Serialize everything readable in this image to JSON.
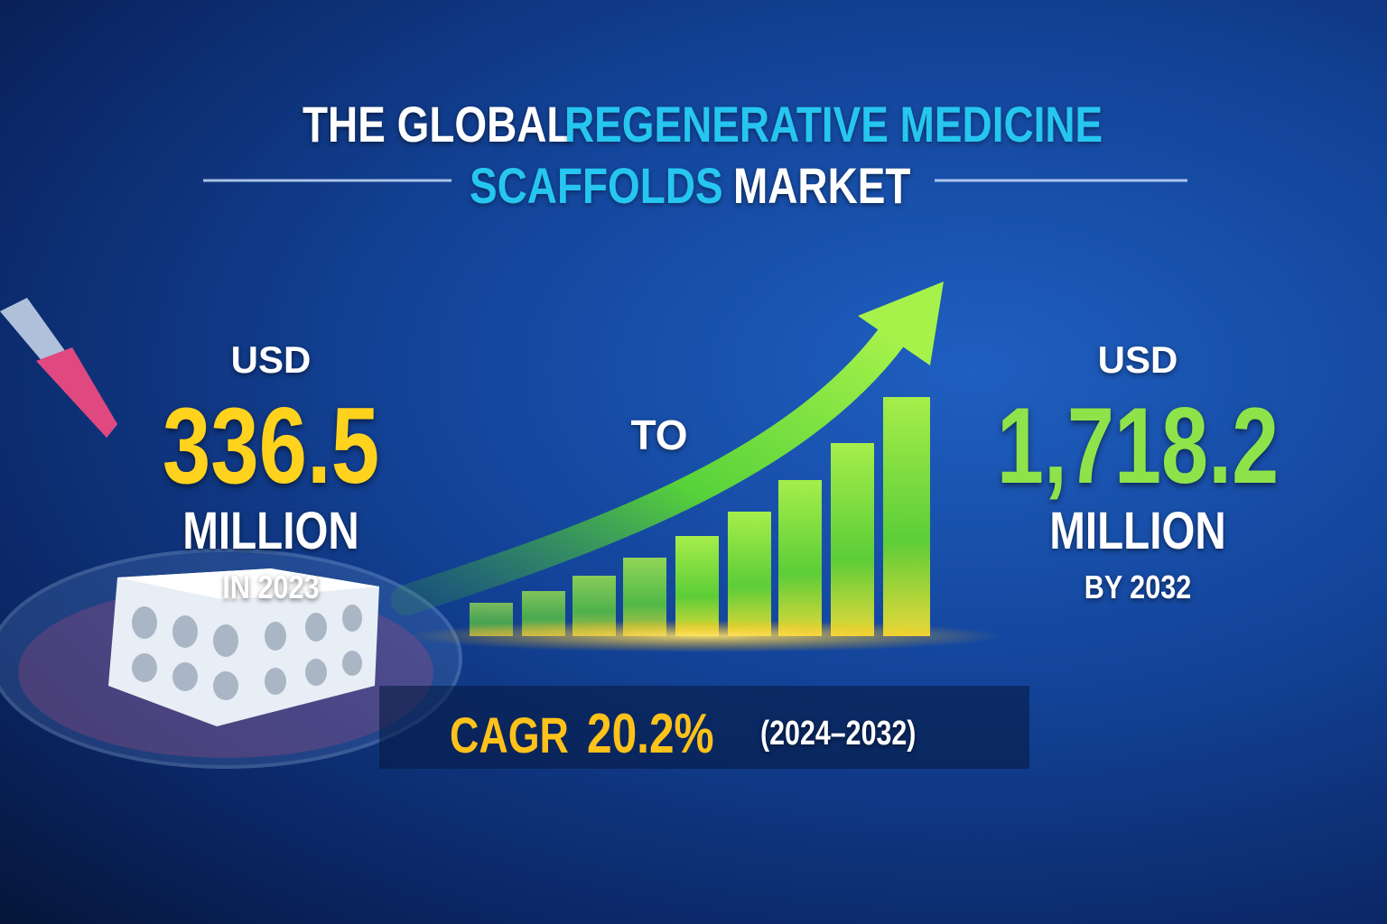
{
  "title": {
    "line1_white": "THE GLOBAL",
    "line1_accent": "REGENERATIVE MEDICINE",
    "line2_accent": "SCAFFOLDS",
    "line2_white": "MARKET"
  },
  "start": {
    "currency": "USD",
    "value": "336.5",
    "unit": "MILLION",
    "period": "IN 2023"
  },
  "connector": "TO",
  "end": {
    "currency": "USD",
    "value": "1,718.2",
    "unit": "MILLION",
    "period": "BY 2032"
  },
  "cagr": {
    "label": "CAGR",
    "value": "20.2%",
    "period": "(2024–2032)"
  }
}
